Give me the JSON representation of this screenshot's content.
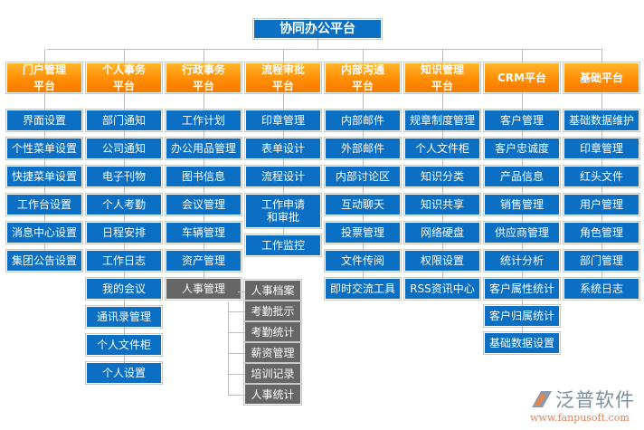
{
  "title": "协同办公平台",
  "columns": [
    {
      "header": "门户管理\n平台",
      "items": [
        "界面设置",
        "个性菜单设置",
        "快捷菜单设置",
        "工作台设置",
        "消息中心设置",
        "集团公告设置"
      ]
    },
    {
      "header": "个人事务\n平台",
      "items": [
        "部门通知",
        "公司通知",
        "电子刊物",
        "个人考勤",
        "日程安排",
        "工作日志",
        "我的会议",
        "通讯录管理",
        "个人文件柜",
        "个人设置"
      ]
    },
    {
      "header": "行政事务\n平台",
      "items": [
        "工作计划",
        "办公用品管理",
        "图书信息",
        "会议管理",
        "车辆管理",
        "资产管理",
        "人事管理"
      ]
    },
    {
      "header": "流程审批\n平台",
      "items": [
        "印章管理",
        "表单设计",
        "流程设计",
        "工作申请\n和审批",
        "工作监控"
      ]
    },
    {
      "header": "内部沟通\n平台",
      "items": [
        "内部邮件",
        "外部邮件",
        "内部讨论区",
        "互动聊天",
        "投票管理",
        "文件传阅",
        "即时交流工具"
      ]
    },
    {
      "header": "知识管理\n平台",
      "items": [
        "规章制度管理",
        "个人文件柜",
        "知识分类",
        "知识共享",
        "网络硬盘",
        "权限设置",
        "RSS资讯中心"
      ]
    },
    {
      "header": "CRM平台",
      "items": [
        "客户管理",
        "客户忠诚度",
        "产品信息",
        "销售管理",
        "供应商管理",
        "统计分析",
        "客户属性统计",
        "客户归属统计",
        "基础数据设置"
      ]
    },
    {
      "header": "基础平台",
      "items": [
        "基础数据维护",
        "印章管理",
        "红头文件",
        "用户管理",
        "角色管理",
        "部门管理",
        "系统日志"
      ]
    }
  ],
  "hr_submenu": [
    "人事档案",
    "考勤批示",
    "考勤统计",
    "薪资管理",
    "培训记录",
    "人事统计"
  ],
  "logo": {
    "name": "泛普软件",
    "url": "www.fanpusoft.com"
  },
  "colors": {
    "item": "#0b6fc4",
    "header": "#ff9a10",
    "sub": "#666666"
  }
}
